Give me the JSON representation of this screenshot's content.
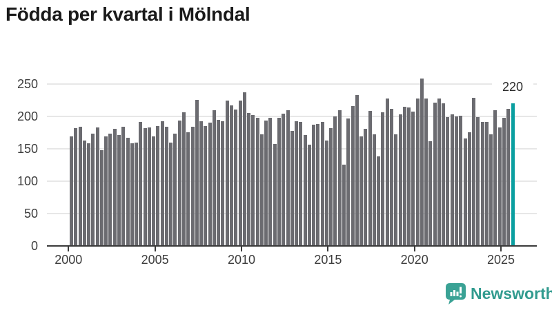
{
  "title": "Födda per kvartal i Mölndal",
  "chart_data": {
    "type": "bar",
    "title": "Födda per kvartal i Mölndal",
    "categories": [
      "2000Q1",
      "2000Q2",
      "2000Q3",
      "2000Q4",
      "2001Q1",
      "2001Q2",
      "2001Q3",
      "2001Q4",
      "2002Q1",
      "2002Q2",
      "2002Q3",
      "2002Q4",
      "2003Q1",
      "2003Q2",
      "2003Q3",
      "2003Q4",
      "2004Q1",
      "2004Q2",
      "2004Q3",
      "2004Q4",
      "2005Q1",
      "2005Q2",
      "2005Q3",
      "2005Q4",
      "2006Q1",
      "2006Q2",
      "2006Q3",
      "2006Q4",
      "2007Q1",
      "2007Q2",
      "2007Q3",
      "2007Q4",
      "2008Q1",
      "2008Q2",
      "2008Q3",
      "2008Q4",
      "2009Q1",
      "2009Q2",
      "2009Q3",
      "2009Q4",
      "2010Q1",
      "2010Q2",
      "2010Q3",
      "2010Q4",
      "2011Q1",
      "2011Q2",
      "2011Q3",
      "2011Q4",
      "2012Q1",
      "2012Q2",
      "2012Q3",
      "2012Q4",
      "2013Q1",
      "2013Q2",
      "2013Q3",
      "2013Q4",
      "2014Q1",
      "2014Q2",
      "2014Q3",
      "2014Q4",
      "2015Q1",
      "2015Q2",
      "2015Q3",
      "2015Q4",
      "2016Q1",
      "2016Q2",
      "2016Q3",
      "2016Q4",
      "2017Q1",
      "2017Q2",
      "2017Q3",
      "2017Q4",
      "2018Q1",
      "2018Q2",
      "2018Q3",
      "2018Q4",
      "2019Q1",
      "2019Q2",
      "2019Q3",
      "2019Q4",
      "2020Q1",
      "2020Q2",
      "2020Q3",
      "2020Q4",
      "2021Q1",
      "2021Q2",
      "2021Q3",
      "2021Q4",
      "2022Q1",
      "2022Q2",
      "2022Q3",
      "2022Q4",
      "2023Q1",
      "2023Q2",
      "2023Q3",
      "2023Q4",
      "2024Q1",
      "2024Q2",
      "2024Q3",
      "2024Q4",
      "2025Q1",
      "2025Q2",
      "2025Q3"
    ],
    "values": [
      169,
      182,
      184,
      163,
      158,
      173,
      183,
      148,
      169,
      173,
      181,
      171,
      184,
      167,
      159,
      160,
      191,
      182,
      183,
      169,
      185,
      193,
      184,
      160,
      173,
      194,
      206,
      176,
      184,
      226,
      193,
      185,
      190,
      210,
      195,
      193,
      225,
      217,
      211,
      224,
      237,
      205,
      202,
      198,
      172,
      194,
      198,
      157,
      198,
      204,
      210,
      178,
      193,
      191,
      171,
      156,
      187,
      188,
      192,
      163,
      182,
      200,
      210,
      126,
      197,
      216,
      233,
      169,
      181,
      208,
      172,
      138,
      206,
      228,
      212,
      172,
      203,
      215,
      214,
      207,
      228,
      259,
      228,
      162,
      221,
      228,
      220,
      199,
      203,
      200,
      201,
      166,
      176,
      229,
      199,
      191,
      191,
      172,
      210,
      183,
      198,
      212,
      220
    ],
    "highlight_index": 102,
    "highlight_value_label": "220",
    "ylim": [
      0,
      250
    ],
    "yticks": [
      0,
      50,
      100,
      150,
      200,
      250
    ],
    "xtick_years": [
      2000,
      2005,
      2010,
      2015,
      2020,
      2025
    ],
    "grid": true,
    "legend": "none",
    "bar_color": "#6b6b70",
    "highlight_color": "#0a9fa0"
  },
  "footer": {
    "brand": "Newsworthy"
  },
  "colors": {
    "title_text": "#1a1a1a",
    "axis_text": "#3d3d3d",
    "axis_line": "#3a3a3a",
    "gridline": "#e7e7e7",
    "bar": "#6b6b70",
    "highlight": "#0a9fa0",
    "brand": "#319b8f"
  }
}
